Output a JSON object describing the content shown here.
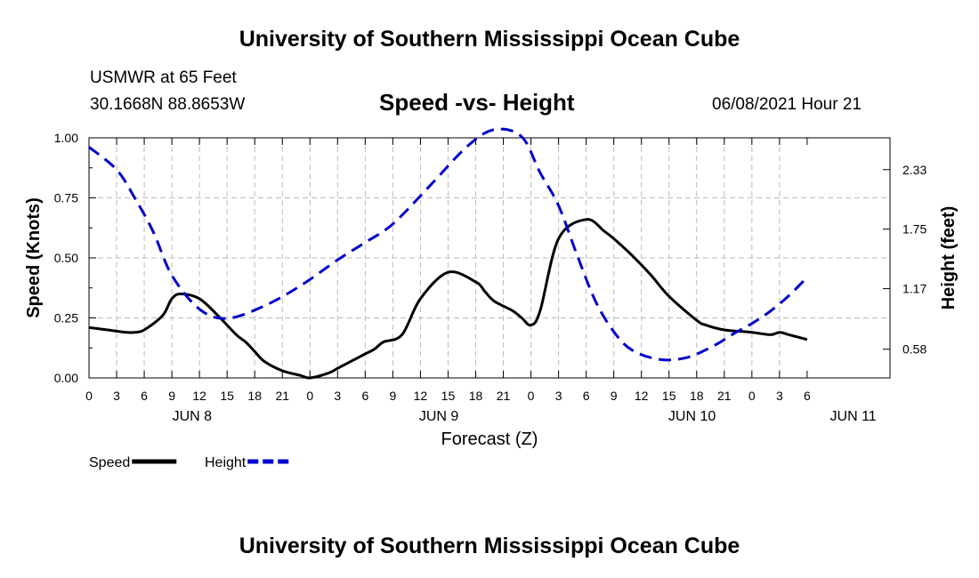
{
  "header": {
    "title": "University of Southern Mississippi Ocean Cube",
    "station": "USMWR at 65 Feet",
    "coords": "30.1668N  88.8653W",
    "date": "06/08/2021 Hour 21"
  },
  "footer": {
    "title": "University of Southern Mississippi Ocean Cube"
  },
  "chart_data": {
    "type": "line",
    "title": "Speed -vs- Height",
    "xlabel": "Forecast (Z)",
    "ylabel_left": "Speed (Knots)",
    "ylabel_right": "Height (feet)",
    "x_unit": "hours since 00Z Jun 8",
    "xlim": [
      -9,
      78
    ],
    "ylim_left": [
      0,
      1
    ],
    "ylim_right": [
      0.3,
      2.64
    ],
    "x_ticks": [
      {
        "x": -9,
        "label": "0"
      },
      {
        "x": -6,
        "label": "3"
      },
      {
        "x": -3,
        "label": "6"
      },
      {
        "x": 0,
        "label": "9"
      },
      {
        "x": 3,
        "label": "12"
      },
      {
        "x": 6,
        "label": "15"
      },
      {
        "x": 9,
        "label": "18"
      },
      {
        "x": 12,
        "label": "21"
      },
      {
        "x": 15,
        "label": "0"
      },
      {
        "x": 18,
        "label": "3"
      },
      {
        "x": 21,
        "label": "6"
      },
      {
        "x": 24,
        "label": "9"
      },
      {
        "x": 27,
        "label": "12"
      },
      {
        "x": 30,
        "label": "15"
      },
      {
        "x": 33,
        "label": "18"
      },
      {
        "x": 36,
        "label": "21"
      },
      {
        "x": 39,
        "label": "0"
      },
      {
        "x": 42,
        "label": "3"
      },
      {
        "x": 45,
        "label": "6"
      },
      {
        "x": 48,
        "label": "9"
      },
      {
        "x": 51,
        "label": "12"
      },
      {
        "x": 54,
        "label": "15"
      },
      {
        "x": 57,
        "label": "18"
      },
      {
        "x": 60,
        "label": "21"
      },
      {
        "x": 63,
        "label": "0"
      },
      {
        "x": 66,
        "label": "3"
      },
      {
        "x": 69,
        "label": "6"
      }
    ],
    "date_labels": [
      {
        "x": 2.2,
        "label": "JUN 8"
      },
      {
        "x": 29,
        "label": "JUN 9"
      },
      {
        "x": 56.5,
        "label": "JUN 10"
      },
      {
        "x": 74,
        "label": "JUN 11"
      }
    ],
    "y_ticks_left": [
      "0.00",
      "0.25",
      "0.50",
      "0.75",
      "1.00"
    ],
    "y_ticks_right": [
      "0.58",
      "1.17",
      "1.75",
      "2.33"
    ],
    "legend": [
      {
        "name": "Speed",
        "color": "#000000",
        "dash": "solid"
      },
      {
        "name": "Height",
        "color": "#0000cc",
        "dash": "dashed"
      }
    ],
    "series": [
      {
        "name": "Speed",
        "axis": "left",
        "color": "#000000",
        "x": [
          -9,
          -7,
          -5,
          -4,
          -3,
          -1,
          0,
          1,
          3,
          5,
          7,
          8,
          9,
          10,
          12,
          14,
          15,
          17,
          18,
          19,
          20,
          21,
          22,
          23,
          25,
          27,
          30,
          33,
          34,
          35,
          37,
          38,
          39,
          40,
          42,
          45,
          47,
          48,
          50,
          52,
          54,
          57,
          58,
          60,
          63,
          65,
          66,
          67,
          68,
          69
        ],
        "values": [
          0.21,
          0.2,
          0.19,
          0.19,
          0.2,
          0.26,
          0.33,
          0.35,
          0.33,
          0.26,
          0.18,
          0.15,
          0.11,
          0.07,
          0.03,
          0.01,
          0.0,
          0.02,
          0.04,
          0.06,
          0.08,
          0.1,
          0.12,
          0.15,
          0.18,
          0.33,
          0.44,
          0.4,
          0.36,
          0.32,
          0.28,
          0.25,
          0.22,
          0.28,
          0.58,
          0.66,
          0.61,
          0.58,
          0.51,
          0.43,
          0.34,
          0.24,
          0.22,
          0.2,
          0.19,
          0.18,
          0.19,
          0.18,
          0.17,
          0.16
        ]
      },
      {
        "name": "Height",
        "axis": "right",
        "color": "#0000cc",
        "x": [
          -9,
          -6,
          -4,
          -2,
          0,
          3,
          6,
          10,
          14,
          18,
          21,
          24,
          28,
          32,
          35,
          38,
          40,
          42,
          44,
          46,
          48,
          50,
          53,
          56,
          59,
          61,
          63,
          65,
          67,
          69
        ],
        "values": [
          2.55,
          2.33,
          2.05,
          1.72,
          1.3,
          0.97,
          0.88,
          1.0,
          1.2,
          1.45,
          1.62,
          1.8,
          2.17,
          2.55,
          2.72,
          2.65,
          2.3,
          1.98,
          1.5,
          1.05,
          0.75,
          0.57,
          0.48,
          0.5,
          0.62,
          0.73,
          0.83,
          0.95,
          1.1,
          1.28
        ]
      }
    ]
  }
}
